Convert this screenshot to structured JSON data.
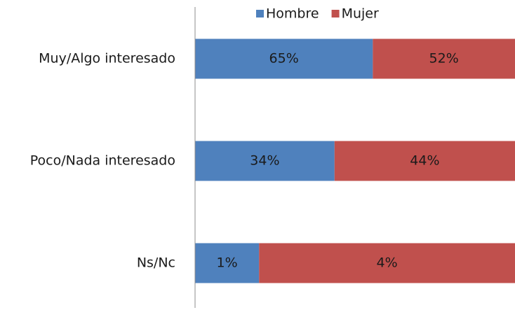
{
  "chart_data": {
    "type": "bar",
    "orientation": "horizontal",
    "stacked": "percent",
    "categories": [
      "Muy/Algo interesado",
      "Poco/Nada interesado",
      "Ns/Nc"
    ],
    "series": [
      {
        "name": "Hombre",
        "color": "#4f81bd",
        "values": [
          65,
          34,
          1
        ],
        "value_labels": [
          "65%",
          "34%",
          "1%"
        ]
      },
      {
        "name": "Mujer",
        "color": "#c0504d",
        "values": [
          52,
          44,
          4
        ],
        "value_labels": [
          "52%",
          "44%",
          "4%"
        ]
      }
    ],
    "legend": "top"
  }
}
